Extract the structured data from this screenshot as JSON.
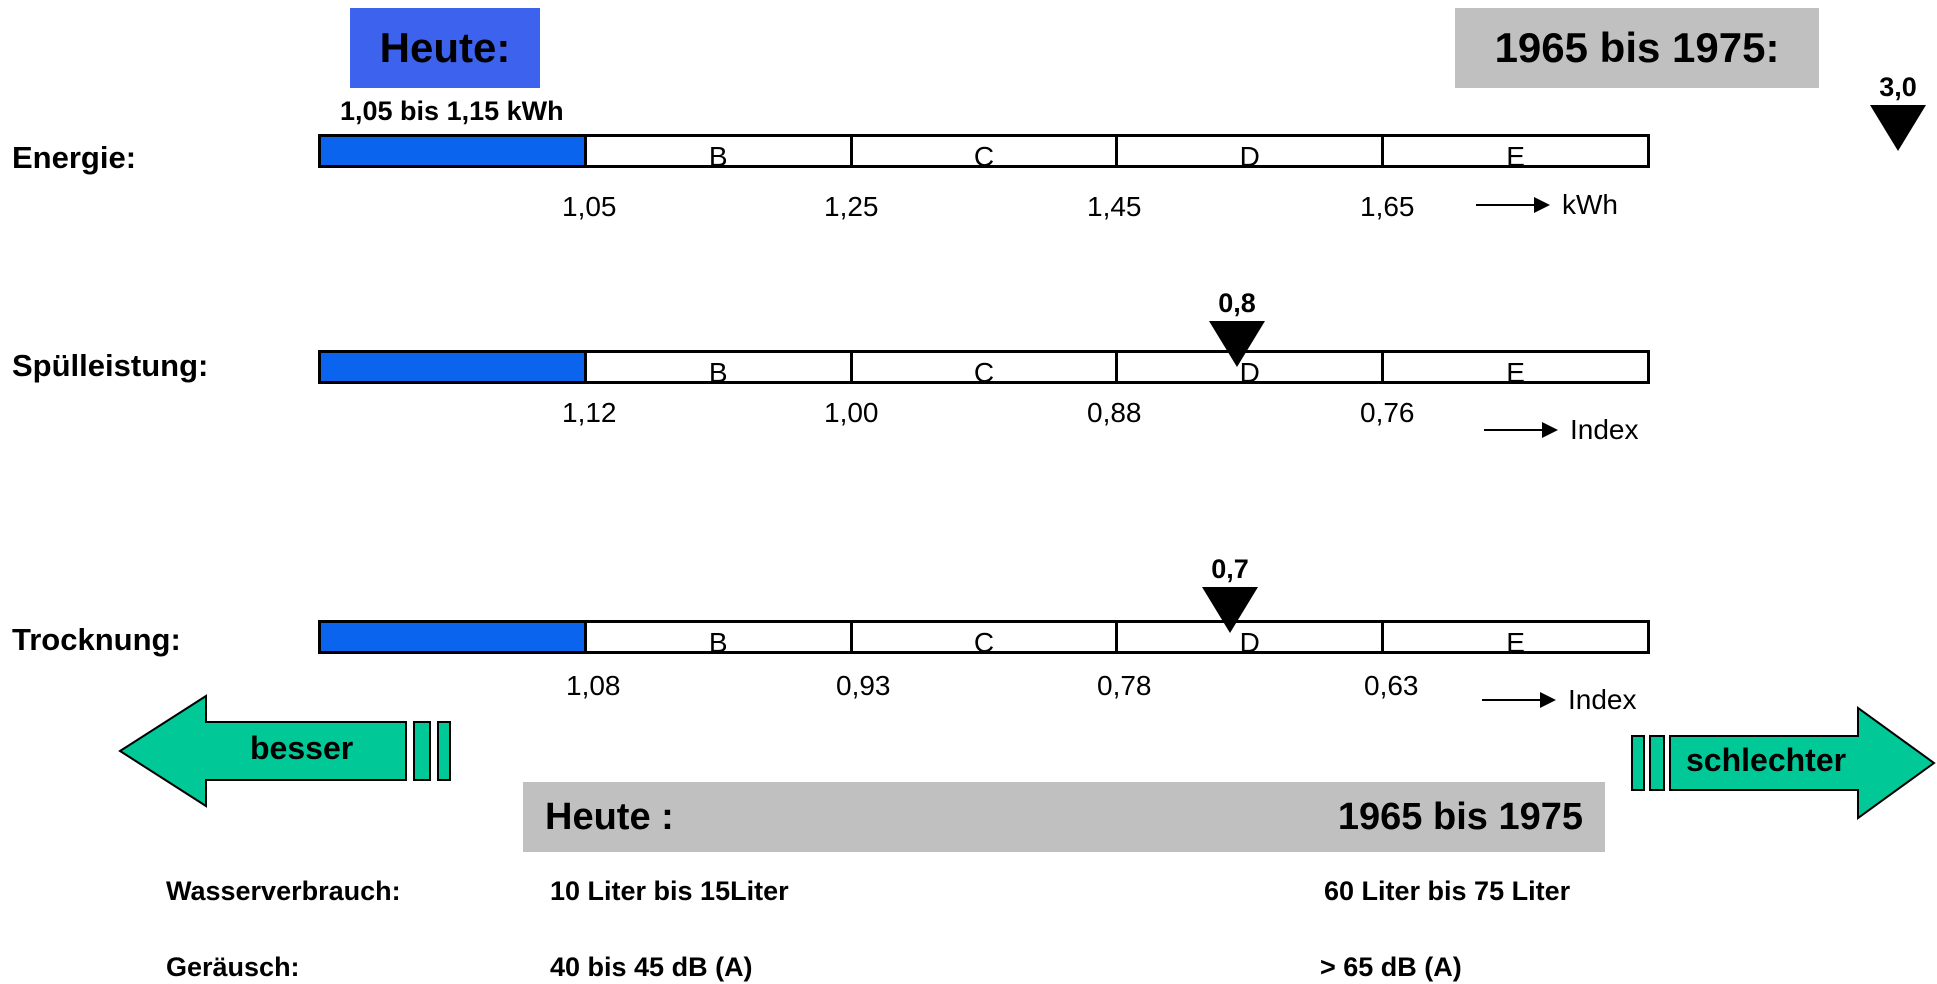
{
  "header": {
    "today_label": "Heute:",
    "period_label": "1965 bis 1975:"
  },
  "energy": {
    "label": "Energie:",
    "today_value": "1,05 bis 1,15 kWh",
    "segments": [
      "",
      "B",
      "C",
      "D",
      "E"
    ],
    "ticks": [
      "1,05",
      "1,25",
      "1,45",
      "1,65"
    ],
    "unit": "kWh",
    "old_marker": "3,0"
  },
  "rinse": {
    "label": "Spülleistung:",
    "segments": [
      "",
      "B",
      "C",
      "D",
      "E"
    ],
    "ticks": [
      "1,12",
      "1,00",
      "0,88",
      "0,76"
    ],
    "unit": "Index",
    "old_marker": "0,8"
  },
  "drying": {
    "label": "Trocknung:",
    "segments": [
      "",
      "B",
      "C",
      "D",
      "E"
    ],
    "ticks": [
      "1,08",
      "0,93",
      "0,78",
      "0,63"
    ],
    "unit": "Index",
    "old_marker": "0,7"
  },
  "direction": {
    "better": "besser",
    "worse": "schlechter"
  },
  "comparison": {
    "today_header": "Heute :",
    "period_header": "1965 bis 1975",
    "rows": [
      {
        "label": "Wasserverbrauch:",
        "today": "10 Liter bis 15Liter",
        "period": "60 Liter  bis 75 Liter"
      },
      {
        "label": "Geräusch:",
        "today": "40 bis 45 dB (A)",
        "period": "> 65 dB (A)"
      }
    ]
  },
  "colors": {
    "today_box": "#3d63ee",
    "class_a_fill": "#0a64ee",
    "arrow_fill": "#00c896",
    "grey_box": "#c0c0c0"
  }
}
